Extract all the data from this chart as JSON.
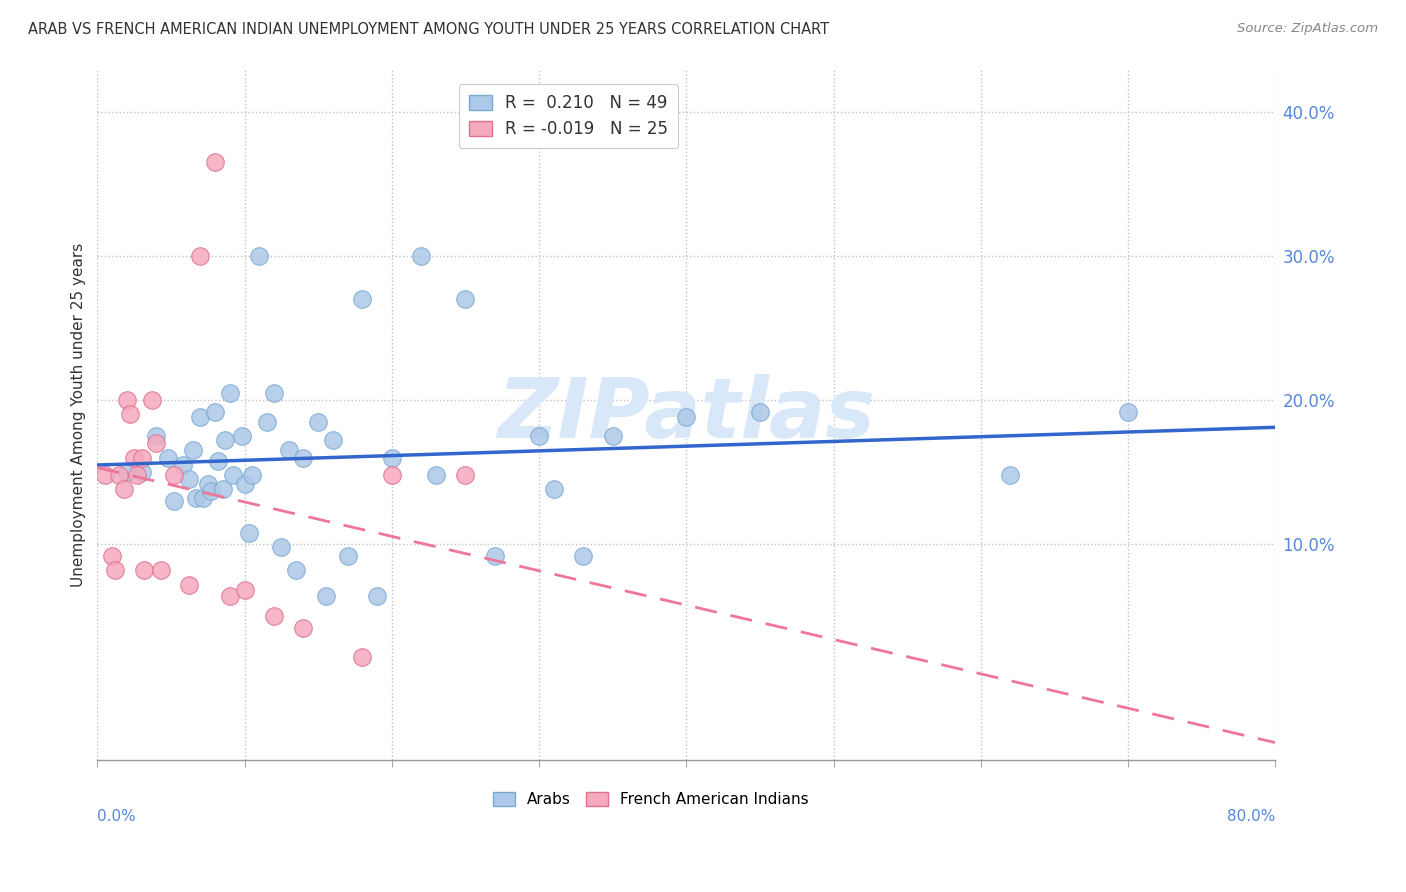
{
  "title": "ARAB VS FRENCH AMERICAN INDIAN UNEMPLOYMENT AMONG YOUTH UNDER 25 YEARS CORRELATION CHART",
  "source": "Source: ZipAtlas.com",
  "ylabel": "Unemployment Among Youth under 25 years",
  "xlim": [
    0.0,
    0.8
  ],
  "ylim": [
    -0.05,
    0.43
  ],
  "yticks": [
    0.1,
    0.2,
    0.3,
    0.4
  ],
  "ytick_labels": [
    "10.0%",
    "20.0%",
    "30.0%",
    "40.0%"
  ],
  "legend_arab_R": "0.210",
  "legend_arab_N": "49",
  "legend_french_R": "-0.019",
  "legend_french_N": "25",
  "arab_face_color": "#adc8e8",
  "arab_edge_color": "#7aaad0",
  "french_face_color": "#f5aabe",
  "french_edge_color": "#e07090",
  "trendline_arab_color": "#3366cc",
  "trendline_french_color": "#ee7799",
  "r_value_color_arab": "#3366cc",
  "r_value_color_french": "#ee7799",
  "watermark_color": "#d8e8f8",
  "arab_points_x": [
    0.02,
    0.03,
    0.04,
    0.048,
    0.052,
    0.058,
    0.062,
    0.065,
    0.067,
    0.07,
    0.072,
    0.075,
    0.077,
    0.08,
    0.082,
    0.085,
    0.087,
    0.09,
    0.092,
    0.098,
    0.1,
    0.103,
    0.105,
    0.11,
    0.115,
    0.12,
    0.125,
    0.13,
    0.135,
    0.14,
    0.15,
    0.155,
    0.16,
    0.17,
    0.18,
    0.19,
    0.2,
    0.22,
    0.23,
    0.25,
    0.27,
    0.3,
    0.31,
    0.33,
    0.35,
    0.4,
    0.45,
    0.62,
    0.7
  ],
  "arab_points_y": [
    0.15,
    0.15,
    0.175,
    0.16,
    0.13,
    0.155,
    0.145,
    0.165,
    0.132,
    0.188,
    0.132,
    0.142,
    0.137,
    0.192,
    0.158,
    0.138,
    0.172,
    0.205,
    0.148,
    0.175,
    0.142,
    0.108,
    0.148,
    0.3,
    0.185,
    0.205,
    0.098,
    0.165,
    0.082,
    0.16,
    0.185,
    0.064,
    0.172,
    0.092,
    0.27,
    0.064,
    0.16,
    0.3,
    0.148,
    0.27,
    0.092,
    0.175,
    0.138,
    0.092,
    0.175,
    0.188,
    0.192,
    0.148,
    0.192
  ],
  "french_points_x": [
    0.005,
    0.01,
    0.012,
    0.015,
    0.018,
    0.02,
    0.022,
    0.025,
    0.027,
    0.03,
    0.032,
    0.037,
    0.04,
    0.043,
    0.052,
    0.062,
    0.07,
    0.08,
    0.09,
    0.1,
    0.12,
    0.14,
    0.18,
    0.2,
    0.25
  ],
  "french_points_y": [
    0.148,
    0.092,
    0.082,
    0.148,
    0.138,
    0.2,
    0.19,
    0.16,
    0.148,
    0.16,
    0.082,
    0.2,
    0.17,
    0.082,
    0.148,
    0.072,
    0.3,
    0.365,
    0.064,
    0.068,
    0.05,
    0.042,
    0.022,
    0.148,
    0.148
  ]
}
